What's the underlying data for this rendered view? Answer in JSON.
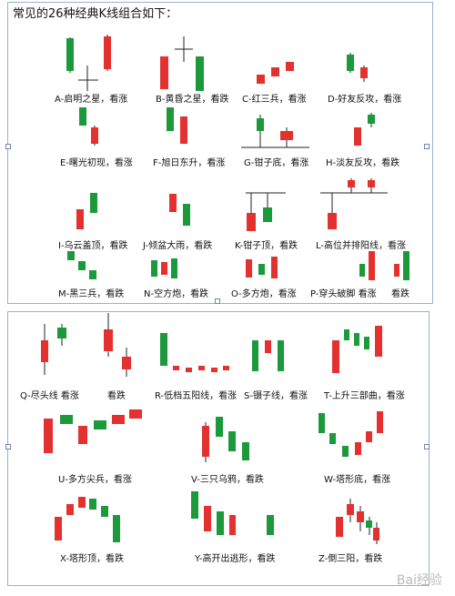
{
  "title": "常见的26种经典K线组合如下：",
  "labels": [
    "A-启明之星，看涨",
    "B-黄昏之星，看跌",
    "C-红三兵，看涨",
    "D-好友反攻，看涨",
    "E-曙光初现，看涨",
    "F-旭日东升，看涨",
    "G-钳子底，看涨",
    "H-淡友反攻，看跌",
    "I-乌云盖顶，看跌",
    "J-倾盆大雨，看跌",
    "K-钳子顶，看跌",
    "L-高位并排阳线，看涨",
    "M-黑三兵，看跌",
    "N-空方炮，看跌",
    "O-多方炮，看涨",
    "P-穿头破脚 看涨",
    "看跌",
    "Q-尽头线 看涨",
    "看跌",
    "R-低档五阳线，看涨",
    "S-镊子线，看涨",
    "T-上升三部曲，看涨",
    "U-多方尖兵，看涨",
    "V-三只乌鸦，看跌",
    "W-塔形底，看涨",
    "X-塔形顶，看跌",
    "Y-高开出逃形，看跌",
    "Z-倒三阳，看跌"
  ],
  "watermark": "Bai经验",
  "colors": {
    "red": "#e3312f",
    "green": "#1c9a3b",
    "line": "#222222",
    "border": "#9bb0cc"
  }
}
